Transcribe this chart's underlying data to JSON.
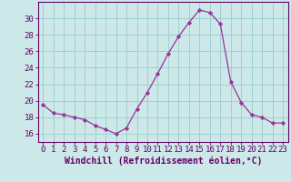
{
  "x": [
    0,
    1,
    2,
    3,
    4,
    5,
    6,
    7,
    8,
    9,
    10,
    11,
    12,
    13,
    14,
    15,
    16,
    17,
    18,
    19,
    20,
    21,
    22,
    23
  ],
  "y": [
    19.5,
    18.5,
    18.3,
    18.0,
    17.7,
    17.0,
    16.5,
    16.0,
    16.7,
    19.0,
    21.0,
    23.3,
    25.7,
    27.8,
    29.5,
    31.0,
    30.7,
    29.3,
    22.3,
    19.8,
    18.3,
    18.0,
    17.3,
    17.3
  ],
  "line_color": "#993399",
  "marker_color": "#993399",
  "bg_color": "#cce8e8",
  "grid_color": "#99cccc",
  "axis_color": "#660066",
  "tick_color": "#660066",
  "xlabel": "Windchill (Refroidissement éolien,°C)",
  "ylim": [
    15.0,
    32.0
  ],
  "yticks": [
    16,
    18,
    20,
    22,
    24,
    26,
    28,
    30
  ],
  "xticks": [
    0,
    1,
    2,
    3,
    4,
    5,
    6,
    7,
    8,
    9,
    10,
    11,
    12,
    13,
    14,
    15,
    16,
    17,
    18,
    19,
    20,
    21,
    22,
    23
  ],
  "font_size": 6.5,
  "label_font_size": 7.0
}
